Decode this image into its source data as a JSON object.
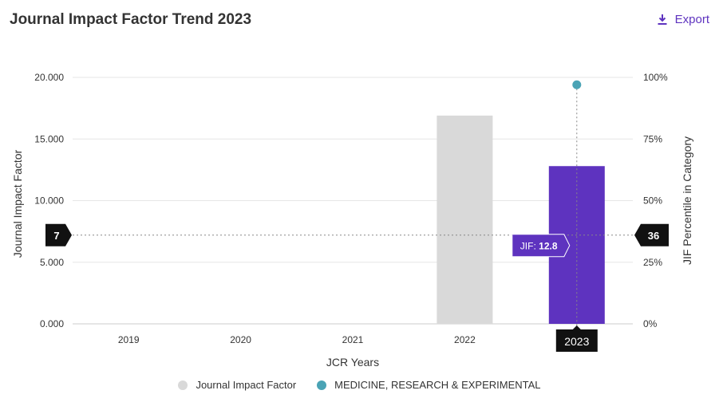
{
  "header": {
    "title": "Journal Impact Factor Trend 2023",
    "export_label": "Export",
    "export_icon": "download-icon"
  },
  "chart_data": {
    "type": "bar",
    "categories": [
      "2019",
      "2020",
      "2021",
      "2022",
      "2023"
    ],
    "series": [
      {
        "values": [
          null,
          null,
          null,
          16.9,
          12.8
        ]
      },
      {
        "name": "MEDICINE, RESEARCH & EXPERIMENTAL",
        "type": "scatter",
        "axis": "right",
        "values": [
          null,
          null,
          null,
          null,
          97
        ]
      }
    ],
    "bar_colors": [
      "#d9d9d9",
      "#d9d9d9",
      "#d9d9d9",
      "#d9d9d9",
      "#5e33bf"
    ],
    "point_color": "#4aa3b5",
    "xlabel": "JCR Years",
    "ylabel": "Journal Impact Factor",
    "y2label": "JIF Percentile in Category",
    "ylim": [
      0,
      20
    ],
    "y2lim": [
      0,
      100
    ],
    "yticks": [
      "0.000",
      "5.000",
      "10.000",
      "15.000",
      "20.000"
    ],
    "y2ticks": [
      "0%",
      "25%",
      "50%",
      "75%",
      "100%"
    ],
    "crosshair": {
      "left_label": "7",
      "right_label": "36",
      "y2_value": 36,
      "x_label": "2023"
    },
    "tooltip": {
      "prefix": "JIF:",
      "value": "12.8",
      "category": "2023"
    },
    "legend": [
      {
        "label": "Journal Impact Factor",
        "color": "#d9d9d9"
      },
      {
        "label": "MEDICINE, RESEARCH & EXPERIMENTAL",
        "color": "#4aa3b5"
      }
    ]
  }
}
